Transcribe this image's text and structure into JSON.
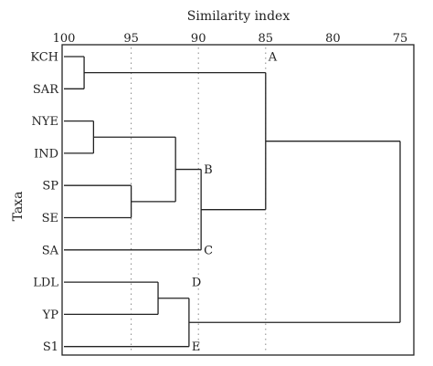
{
  "chart_data": {
    "type": "dendrogram",
    "xlabel": "Similarity index",
    "ylabel": "Taxa",
    "x_ticks": [
      100,
      95,
      90,
      85,
      80,
      75
    ],
    "xlim": [
      100,
      74
    ],
    "grid": "dotted vertical lines at 95, 90, 85",
    "taxa": [
      "KCH",
      "SAR",
      "NYE",
      "IND",
      "SP",
      "SE",
      "SA",
      "LDL",
      "YP",
      "S1"
    ],
    "merges": [
      {
        "id": "m_kch_sar",
        "children": [
          "KCH",
          "SAR"
        ],
        "similarity": 98.5
      },
      {
        "id": "m_nye_ind",
        "children": [
          "NYE",
          "IND"
        ],
        "similarity": 97.8
      },
      {
        "id": "m_sp_se",
        "children": [
          "SP",
          "SE"
        ],
        "similarity": 95.0
      },
      {
        "id": "m_nye_sp",
        "children": [
          "m_nye_ind",
          "m_sp_se"
        ],
        "similarity": 91.7
      },
      {
        "id": "m_b",
        "children": [
          "m_nye_sp",
          "SA"
        ],
        "similarity": 89.8
      },
      {
        "id": "m_ldl_yp",
        "children": [
          "LDL",
          "YP"
        ],
        "similarity": 93.0
      },
      {
        "id": "m_de",
        "children": [
          "m_ldl_yp",
          "S1"
        ],
        "similarity": 90.7
      },
      {
        "id": "m_ab",
        "children": [
          "m_kch_sar",
          "m_b"
        ],
        "similarity": 85.0
      },
      {
        "id": "m_root",
        "children": [
          "m_ab",
          "m_de"
        ],
        "similarity": 75.0
      }
    ],
    "node_labels": [
      {
        "label": "A",
        "at": "KCH",
        "similarity": 85.0
      },
      {
        "label": "B",
        "at": "m_nye_sp",
        "similarity": 89.8
      },
      {
        "label": "C",
        "at": "SA",
        "similarity": 89.8
      },
      {
        "label": "D",
        "at": "LDL",
        "similarity": 90.7
      },
      {
        "label": "E",
        "at": "S1",
        "similarity": 90.7
      }
    ]
  }
}
